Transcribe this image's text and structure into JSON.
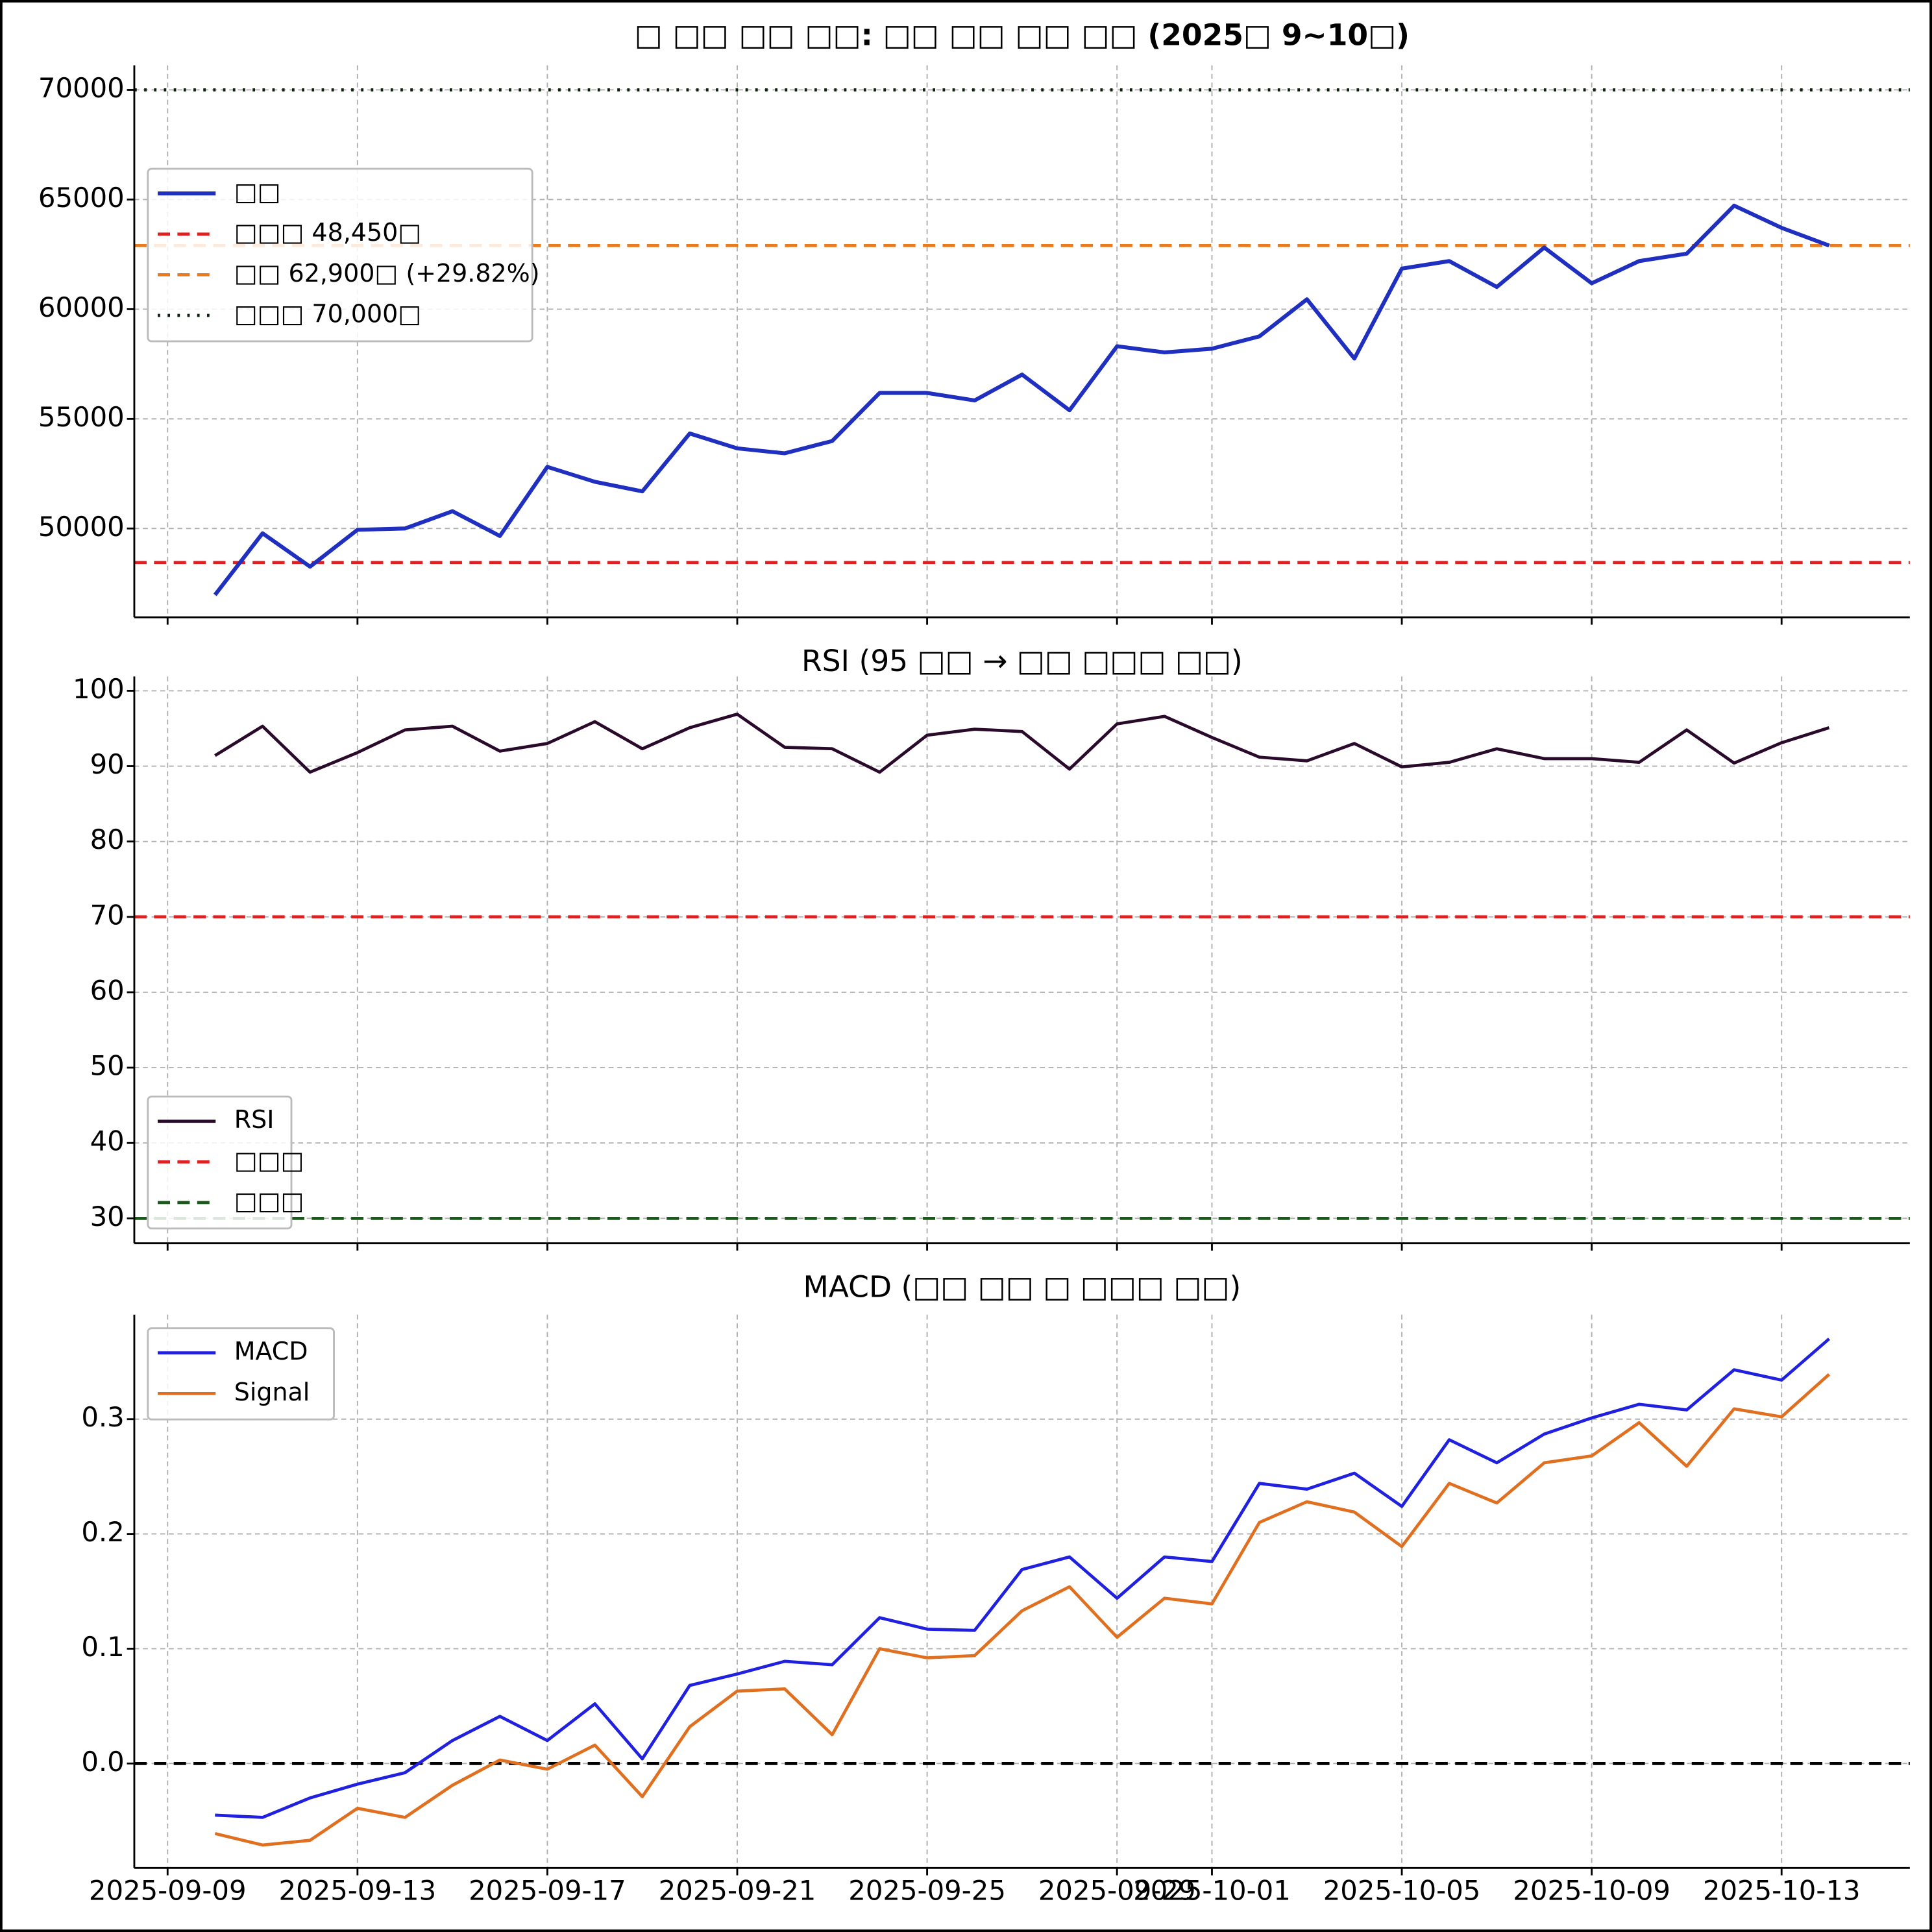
{
  "chart_data": [
    {
      "type": "line",
      "title": "□ □□ □□ □□: □□ □□ □□ □□ (2025□ 9~10□)",
      "x": [
        "2025-09-10",
        "2025-09-11",
        "2025-09-12",
        "2025-09-13",
        "2025-09-14",
        "2025-09-15",
        "2025-09-16",
        "2025-09-17",
        "2025-09-18",
        "2025-09-19",
        "2025-09-20",
        "2025-09-21",
        "2025-09-22",
        "2025-09-23",
        "2025-09-24",
        "2025-09-25",
        "2025-09-26",
        "2025-09-27",
        "2025-09-28",
        "2025-09-29",
        "2025-09-30",
        "2025-10-01",
        "2025-10-02",
        "2025-10-03",
        "2025-10-04",
        "2025-10-05",
        "2025-10-06",
        "2025-10-07",
        "2025-10-08",
        "2025-10-09",
        "2025-10-10",
        "2025-10-11",
        "2025-10-12",
        "2025-10-13",
        "2025-10-14"
      ],
      "xlim": [
        "2025-09-08T07:10",
        "2025-10-15T16:50"
      ],
      "xticks": [
        "2025-09-09",
        "2025-09-13",
        "2025-09-17",
        "2025-09-21",
        "2025-09-25",
        "2025-09-29",
        "2025-10-01",
        "2025-10-05",
        "2025-10-09",
        "2025-10-13"
      ],
      "ylim": [
        45950,
        71120
      ],
      "yticks": [
        50000,
        55000,
        60000,
        65000,
        70000
      ],
      "grid": true,
      "legend": "center left",
      "series": [
        {
          "name": "□□",
          "color": "#1f2fbf",
          "values": [
            46970,
            49780,
            48260,
            49940,
            50000,
            50790,
            49660,
            52810,
            52130,
            51690,
            54330,
            53650,
            53430,
            53990,
            56180,
            56180,
            55840,
            57020,
            55390,
            58310,
            58030,
            58200,
            58760,
            60450,
            57750,
            61850,
            62190,
            61010,
            62810,
            61180,
            62190,
            62530,
            64720,
            63710,
            62900
          ]
        }
      ],
      "hlines": [
        {
          "name": "□□□ 48,450□",
          "value": 48450,
          "color": "#e02020",
          "style": "dashed"
        },
        {
          "name": "□□ 62,900□ (+29.82%)",
          "value": 62900,
          "color": "#e87a20",
          "style": "dashed"
        },
        {
          "name": "□□□ 70,000□",
          "value": 70000,
          "color": "#102010",
          "style": "dotted"
        }
      ]
    },
    {
      "type": "line",
      "title": "RSI (95 □□ → □□ □□□ □□)",
      "x": [
        "2025-09-10",
        "2025-09-11",
        "2025-09-12",
        "2025-09-13",
        "2025-09-14",
        "2025-09-15",
        "2025-09-16",
        "2025-09-17",
        "2025-09-18",
        "2025-09-19",
        "2025-09-20",
        "2025-09-21",
        "2025-09-22",
        "2025-09-23",
        "2025-09-24",
        "2025-09-25",
        "2025-09-26",
        "2025-09-27",
        "2025-09-28",
        "2025-09-29",
        "2025-09-30",
        "2025-10-01",
        "2025-10-02",
        "2025-10-03",
        "2025-10-04",
        "2025-10-05",
        "2025-10-06",
        "2025-10-07",
        "2025-10-08",
        "2025-10-09",
        "2025-10-10",
        "2025-10-11",
        "2025-10-12",
        "2025-10-13",
        "2025-10-14"
      ],
      "xlim": [
        "2025-09-08T07:10",
        "2025-10-15T16:50"
      ],
      "xticks": [
        "2025-09-09",
        "2025-09-13",
        "2025-09-17",
        "2025-09-21",
        "2025-09-25",
        "2025-09-29",
        "2025-10-01",
        "2025-10-05",
        "2025-10-09",
        "2025-10-13"
      ],
      "ylim": [
        26.7,
        101.9
      ],
      "yticks": [
        30,
        40,
        50,
        60,
        70,
        80,
        90,
        100
      ],
      "grid": true,
      "legend": "lower left",
      "series": [
        {
          "name": "RSI",
          "color": "#2a0a2a",
          "values": [
            91.4,
            95.3,
            89.2,
            91.8,
            94.8,
            95.3,
            92.0,
            93.0,
            95.9,
            92.3,
            95.1,
            96.9,
            92.5,
            92.3,
            89.2,
            94.1,
            94.9,
            94.6,
            89.6,
            95.6,
            96.6,
            93.8,
            91.2,
            90.7,
            93.0,
            89.9,
            90.5,
            92.3,
            91.0,
            91.0,
            90.5,
            94.8,
            90.4,
            93.1,
            95.1
          ]
        }
      ],
      "hlines": [
        {
          "name": "□□□",
          "value": 70,
          "color": "#e02020",
          "style": "dashed"
        },
        {
          "name": "□□□",
          "value": 30,
          "color": "#1a5a1a",
          "style": "dashed"
        }
      ]
    },
    {
      "type": "line",
      "title": "MACD (□□ □□ □ □□□ □□)",
      "x": [
        "2025-09-10",
        "2025-09-11",
        "2025-09-12",
        "2025-09-13",
        "2025-09-14",
        "2025-09-15",
        "2025-09-16",
        "2025-09-17",
        "2025-09-18",
        "2025-09-19",
        "2025-09-20",
        "2025-09-21",
        "2025-09-22",
        "2025-09-23",
        "2025-09-24",
        "2025-09-25",
        "2025-09-26",
        "2025-09-27",
        "2025-09-28",
        "2025-09-29",
        "2025-09-30",
        "2025-10-01",
        "2025-10-02",
        "2025-10-03",
        "2025-10-04",
        "2025-10-05",
        "2025-10-06",
        "2025-10-07",
        "2025-10-08",
        "2025-10-09",
        "2025-10-10",
        "2025-10-11",
        "2025-10-12",
        "2025-10-13",
        "2025-10-14"
      ],
      "xlim": [
        "2025-09-08T07:10",
        "2025-10-15T16:50"
      ],
      "xticks": [
        "2025-09-09",
        "2025-09-13",
        "2025-09-17",
        "2025-09-21",
        "2025-09-25",
        "2025-09-29",
        "2025-10-01",
        "2025-10-05",
        "2025-10-09",
        "2025-10-13"
      ],
      "ylim": [
        -0.091,
        0.391
      ],
      "yticks": [
        {
          "value": 0,
          "label": "0.0"
        },
        0.1,
        0.2,
        0.3
      ],
      "grid": true,
      "legend": "upper left",
      "series": [
        {
          "name": "MACD",
          "color": "#2020e0",
          "values": [
            -0.045,
            -0.047,
            -0.03,
            -0.018,
            -0.008,
            0.02,
            0.041,
            0.02,
            0.052,
            0.004,
            0.068,
            0.078,
            0.089,
            0.086,
            0.127,
            0.117,
            0.116,
            0.169,
            0.18,
            0.144,
            0.18,
            0.176,
            0.244,
            0.239,
            0.253,
            0.224,
            0.282,
            0.262,
            0.287,
            0.301,
            0.313,
            0.308,
            0.343,
            0.334,
            0.37
          ]
        },
        {
          "name": "Signal",
          "color": "#e07020",
          "values": [
            -0.061,
            -0.071,
            -0.067,
            -0.039,
            -0.047,
            -0.019,
            0.003,
            -0.005,
            0.016,
            -0.029,
            0.032,
            0.063,
            0.065,
            0.025,
            0.1,
            0.092,
            0.094,
            0.133,
            0.154,
            0.11,
            0.144,
            0.139,
            0.21,
            0.228,
            0.219,
            0.189,
            0.244,
            0.227,
            0.262,
            0.268,
            0.297,
            0.259,
            0.309,
            0.302,
            0.339
          ]
        }
      ],
      "hlines": [
        {
          "value": 0,
          "color": "#000000",
          "style": "dashed"
        }
      ]
    }
  ]
}
